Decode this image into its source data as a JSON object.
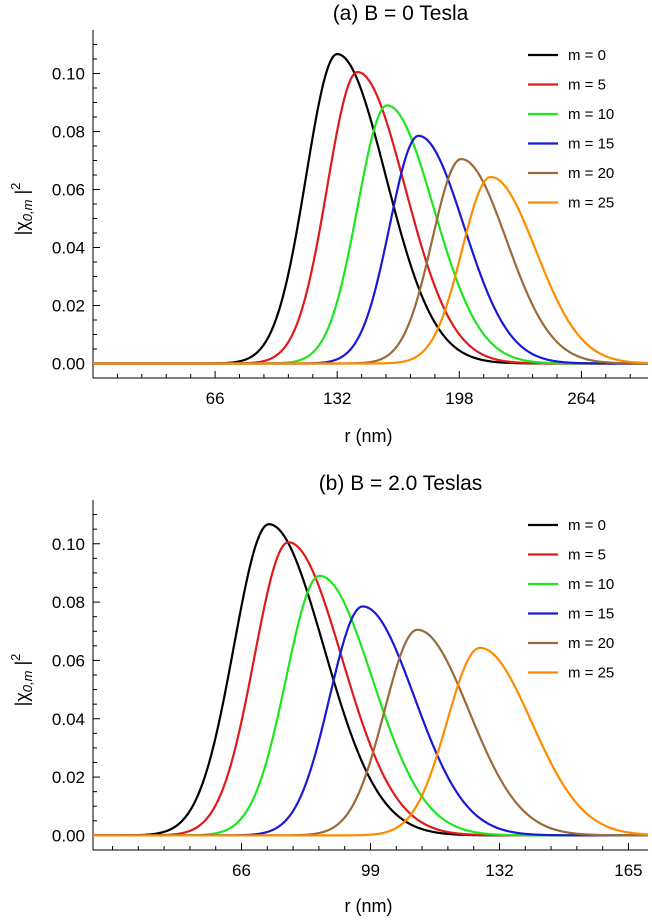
{
  "chart_data": [
    {
      "type": "line",
      "title": "(a) B = 0 Tesla",
      "xlabel": "r (nm)",
      "ylabel_main": "|χ",
      "ylabel_sub": "0,m",
      "ylabel_end": "|",
      "ylabel_sup": "2",
      "xlim": [
        0,
        300
      ],
      "ylim": [
        -0.005,
        0.115
      ],
      "x_ticks": [
        66,
        132,
        198,
        264
      ],
      "y_ticks": [
        0.0,
        0.02,
        0.04,
        0.06,
        0.08,
        0.1
      ],
      "y_tick_labels": [
        "0.00",
        "0.02",
        "0.04",
        "0.06",
        "0.08",
        "0.10"
      ],
      "legend_position": "top-right",
      "series": [
        {
          "name": "m = 0",
          "color": "#000000",
          "x": [
            40,
            70,
            90,
            105,
            115,
            125,
            132,
            140,
            150,
            160,
            170,
            185,
            200,
            220,
            260,
            300
          ],
          "y": [
            0,
            0.0012,
            0.01,
            0.034,
            0.062,
            0.094,
            0.1067,
            0.101,
            0.077,
            0.049,
            0.026,
            0.0085,
            0.002,
            0.0002,
            0,
            0
          ]
        },
        {
          "name": "m = 5",
          "color": "#e01a1a",
          "x": [
            50,
            80,
            100,
            115,
            125,
            135,
            143,
            150,
            160,
            170,
            180,
            195,
            210,
            230,
            260,
            300
          ],
          "y": [
            0,
            0.001,
            0.011,
            0.04,
            0.07,
            0.094,
            0.1005,
            0.096,
            0.079,
            0.054,
            0.031,
            0.01,
            0.0025,
            0.0003,
            0,
            0
          ]
        },
        {
          "name": "m = 5",
          "color": "#e01a1a",
          "x": [],
          "y": []
        },
        {
          "name": "m = 10",
          "color": "#1ee61e",
          "x": [],
          "y": []
        }
      ]
    }
  ]
}
